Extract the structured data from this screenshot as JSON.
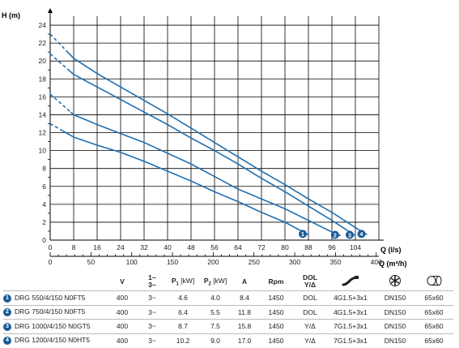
{
  "chart_data": {
    "type": "line",
    "xlabel": "Q (l/s)",
    "x2label": "Q (m³/h)",
    "ylabel": "H (m)",
    "xlim": [
      0,
      112
    ],
    "ylim": [
      0,
      25
    ],
    "x_ticks": [
      "0",
      "8",
      "16",
      "24",
      "32",
      "40",
      "48",
      "56",
      "64",
      "72",
      "80",
      "88",
      "96",
      "104"
    ],
    "y_ticks": [
      "0",
      "2",
      "4",
      "6",
      "8",
      "10",
      "12",
      "14",
      "16",
      "18",
      "20",
      "22",
      "24"
    ],
    "x2_ticks": [
      "0",
      "50",
      "100",
      "150",
      "200",
      "250",
      "300",
      "350",
      "400"
    ],
    "grid": true,
    "series": [
      {
        "name": "1",
        "x": [
          0,
          8,
          16,
          24,
          32,
          40,
          48,
          56,
          64,
          72,
          80,
          84,
          88
        ],
        "y": [
          13.0,
          11.5,
          10.6,
          9.8,
          8.8,
          7.7,
          6.6,
          5.4,
          4.3,
          3.1,
          2.0,
          1.3,
          0.6
        ],
        "dashed_until_x": 4
      },
      {
        "name": "2",
        "x": [
          0,
          8,
          16,
          24,
          32,
          40,
          48,
          56,
          64,
          72,
          80,
          88,
          96,
          99
        ],
        "y": [
          16.3,
          14.0,
          12.9,
          11.9,
          10.9,
          9.7,
          8.5,
          7.1,
          5.7,
          4.6,
          3.5,
          2.2,
          0.9,
          0.5
        ],
        "dashed_until_x": 7
      },
      {
        "name": "3",
        "x": [
          0,
          8,
          16,
          24,
          32,
          40,
          48,
          56,
          64,
          72,
          80,
          88,
          96,
          104
        ],
        "y": [
          20.8,
          18.5,
          17.1,
          15.7,
          14.3,
          12.9,
          11.4,
          10.0,
          8.5,
          6.9,
          5.4,
          3.8,
          2.2,
          0.5
        ],
        "dashed_until_x": 6
      },
      {
        "name": "4",
        "x": [
          0,
          8,
          16,
          24,
          32,
          40,
          48,
          56,
          64,
          72,
          80,
          88,
          96,
          104,
          108
        ],
        "y": [
          23.0,
          20.3,
          18.6,
          17.1,
          15.6,
          14.1,
          12.5,
          10.9,
          9.3,
          7.7,
          6.2,
          4.6,
          3.1,
          1.4,
          0.6
        ],
        "dashed_until_x": 6
      }
    ]
  },
  "table": {
    "headers": {
      "v": "V",
      "phase_top": "1~",
      "phase_bottom": "3~",
      "p1_sym": "P",
      "p1_sub": "1",
      "p1_unit": " [kW]",
      "p2_sym": "P",
      "p2_sub": "2",
      "p2_unit": " [kW]",
      "a": "A",
      "rpm": "Rpm",
      "dol_top": "DOL",
      "dol_bottom": "Y/Δ"
    },
    "rows": [
      {
        "num": "1",
        "model": "DRG 550/4/150 N0FT5",
        "v": "400",
        "phase": "3~",
        "p1": "4.6",
        "p2": "4.0",
        "a": "8.4",
        "rpm": "1450",
        "start": "DOL",
        "cable": "4G1.5+3x1",
        "dn": "DN150",
        "size": "65x60"
      },
      {
        "num": "2",
        "model": "DRG 750/4/150 N0FT5",
        "v": "400",
        "phase": "3~",
        "p1": "6.4",
        "p2": "5.5",
        "a": "11.8",
        "rpm": "1450",
        "start": "DOL",
        "cable": "4G1.5+3x1",
        "dn": "DN150",
        "size": "65x60"
      },
      {
        "num": "3",
        "model": "DRG 1000/4/150 N0GT5",
        "v": "400",
        "phase": "3~",
        "p1": "8.7",
        "p2": "7.5",
        "a": "15.8",
        "rpm": "1450",
        "start": "Y/Δ",
        "cable": "7G1.5+3x1",
        "dn": "DN150",
        "size": "65x60"
      },
      {
        "num": "4",
        "model": "DRG 1200/4/150 N0HT5",
        "v": "400",
        "phase": "3~",
        "p1": "10.2",
        "p2": "9.0",
        "a": "17.0",
        "rpm": "1450",
        "start": "Y/Δ",
        "cable": "7G1.5+3x1",
        "dn": "DN150",
        "size": "65x60"
      }
    ]
  },
  "icons": {
    "cable": "cable-icon",
    "impeller": "impeller-icon",
    "passage": "solid-passage-icon"
  },
  "colors": {
    "curve": "#1f6fb2",
    "marker": "#1a5a96",
    "grid": "#000000"
  }
}
